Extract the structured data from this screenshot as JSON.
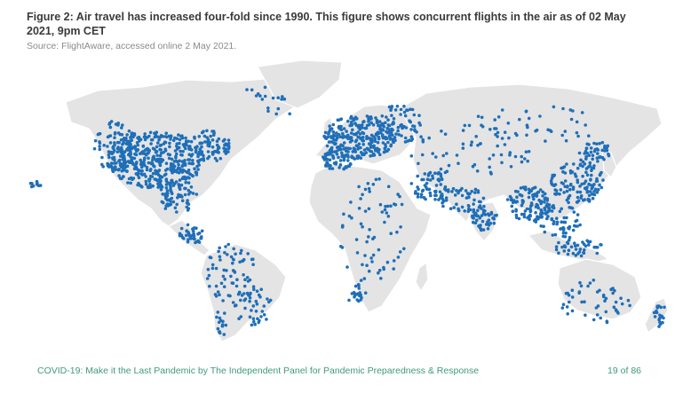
{
  "caption": {
    "title": "Figure 2: Air travel has increased four-fold since 1990. This figure shows concurrent flights in the air as of 02 May 2021, 9pm CET",
    "source": "Source: FlightAware, accessed online 2 May 2021."
  },
  "footer": {
    "text": "COVID-19: Make it the Last Pandemic by The Independent Panel for Pandemic Preparedness & Response",
    "page": "19 of 86"
  },
  "colors": {
    "flight": "#1f6fb8",
    "land": "#e4e4e4",
    "footer": "#3f9a7a"
  }
}
